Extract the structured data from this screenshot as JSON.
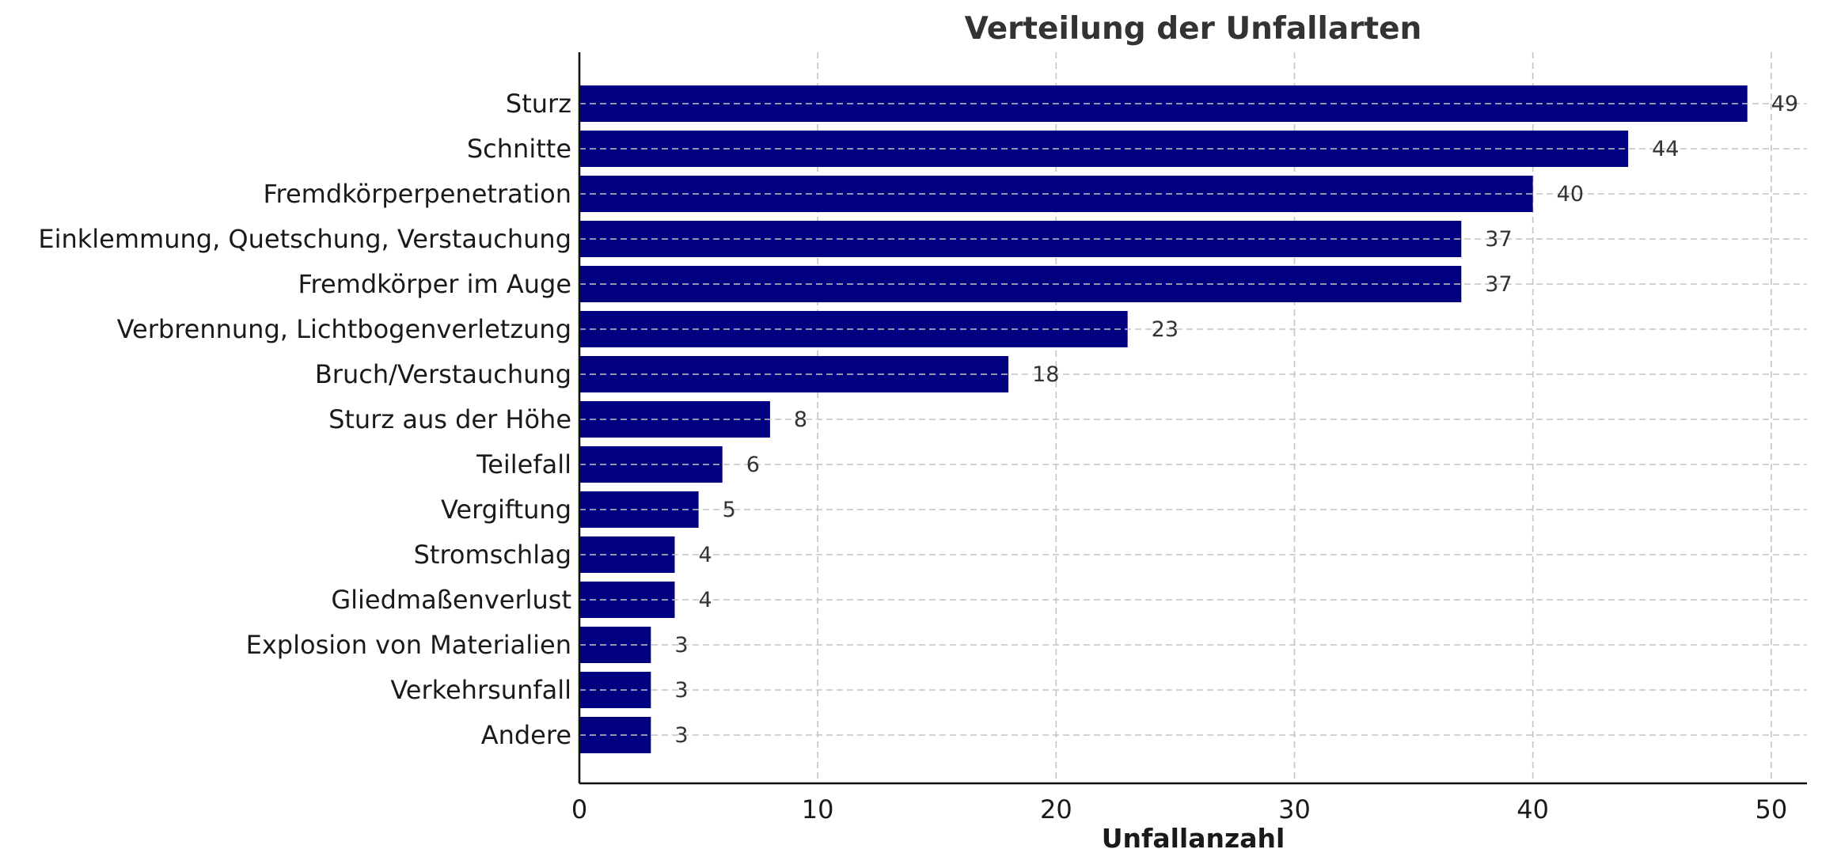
{
  "chart_data": {
    "type": "bar",
    "orientation": "horizontal",
    "title": "Verteilung der Unfallarten",
    "xlabel": "Unfallanzahl",
    "ylabel": "",
    "categories": [
      "Sturz",
      "Schnitte",
      "Fremdkörperpenetration",
      "Einklemmung, Quetschung, Verstauchung",
      "Fremdkörper im Auge",
      "Verbrennung, Lichtbogenverletzung",
      "Bruch/Verstauchung",
      "Sturz aus der Höhe",
      "Teilefall",
      "Vergiftung",
      "Stromschlag",
      "Gliedmaßenverlust",
      "Explosion von Materialien",
      "Verkehrsunfall",
      "Andere"
    ],
    "values": [
      49,
      44,
      40,
      37,
      37,
      23,
      18,
      8,
      6,
      5,
      4,
      4,
      3,
      3,
      3
    ],
    "xlim": [
      0,
      51.5
    ],
    "xticks": [
      0,
      10,
      20,
      30,
      40,
      50
    ],
    "grid": true,
    "bar_color": "#000080",
    "data_labels": true
  }
}
